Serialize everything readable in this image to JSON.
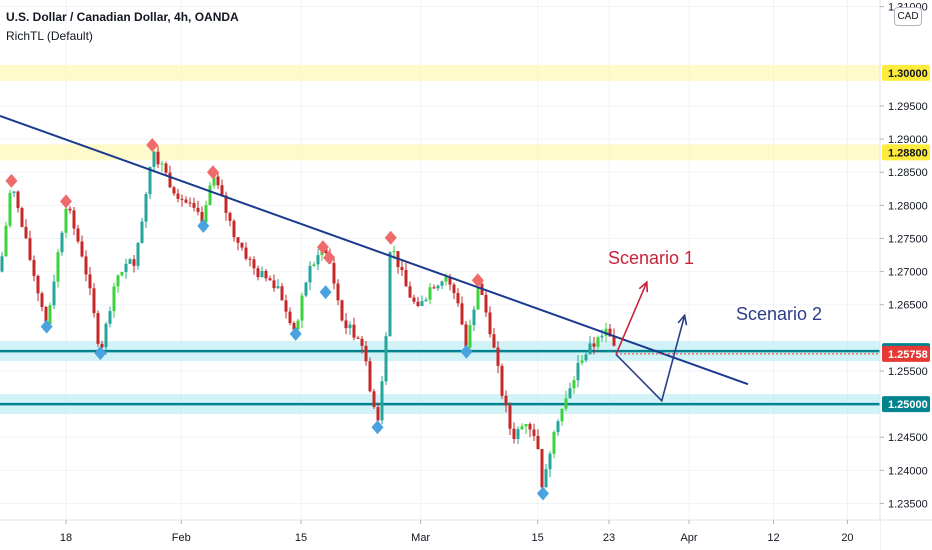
{
  "header": {
    "title": "U.S. Dollar / Canadian Dollar, 4h, OANDA",
    "indicator": "RichTL (Default)",
    "currency": "CAD"
  },
  "chart_data": {
    "type": "candlestick",
    "symbol": "USDCAD",
    "timeframe": "4h",
    "x_tick_labels": [
      "18",
      "Feb",
      "15",
      "Mar",
      "15",
      "23",
      "Apr",
      "12",
      "20"
    ],
    "y_tick_labels": [
      "1.31000",
      "1.29500",
      "1.29000",
      "1.28500",
      "1.28000",
      "1.27500",
      "1.27000",
      "1.26500",
      "1.25500",
      "1.24500",
      "1.24000",
      "1.23500"
    ],
    "ylim": [
      1.2325,
      1.311
    ],
    "grid": true,
    "colors": {
      "up": "#26a69a",
      "up_bright": "#3bd23b",
      "down": "#c62828",
      "trendline": "#1a3a8f",
      "resistance_band": "#fff59d",
      "support_band": "#b2ebf2",
      "support_line": "#00838f",
      "scenario1": "#c8233a",
      "scenario2": "#2c3e8a",
      "swing_high": "#ef6b6b",
      "swing_low": "#4aa3df",
      "last_price_tag": "#e53935"
    },
    "levels": [
      {
        "price": 1.3,
        "label": "1.30000",
        "style": "yellow-band"
      },
      {
        "price": 1.288,
        "label": "1.28800",
        "style": "yellow-band"
      },
      {
        "price": 1.258,
        "label": "1.25800",
        "style": "cyan-band"
      },
      {
        "price": 1.25,
        "label": "1.25000",
        "style": "cyan-band"
      }
    ],
    "last_price": {
      "value": 1.25758,
      "label": "1.25758"
    },
    "trendline": {
      "from": [
        0.0,
        1.2935
      ],
      "to": [
        0.85,
        1.253
      ]
    },
    "scenarios": [
      {
        "name": "Scenario 1",
        "path": [
          [
            0.7,
            1.2575
          ],
          [
            0.735,
            1.2684
          ]
        ]
      },
      {
        "name": "Scenario 2",
        "path": [
          [
            0.7,
            1.2575
          ],
          [
            0.752,
            1.2505
          ],
          [
            0.778,
            1.2634
          ]
        ]
      }
    ],
    "swing_highs": [
      {
        "t": 0.013,
        "p": 1.2834
      },
      {
        "t": 0.075,
        "p": 1.2803
      },
      {
        "t": 0.173,
        "p": 1.2888
      },
      {
        "t": 0.242,
        "p": 1.2847
      },
      {
        "t": 0.367,
        "p": 1.2734
      },
      {
        "t": 0.374,
        "p": 1.2718
      },
      {
        "t": 0.444,
        "p": 1.2748
      },
      {
        "t": 0.543,
        "p": 1.2684
      }
    ],
    "swing_lows": [
      {
        "t": 0.053,
        "p": 1.262
      },
      {
        "t": 0.114,
        "p": 1.258
      },
      {
        "t": 0.231,
        "p": 1.2772
      },
      {
        "t": 0.336,
        "p": 1.2609
      },
      {
        "t": 0.37,
        "p": 1.2672
      },
      {
        "t": 0.429,
        "p": 1.2468
      },
      {
        "t": 0.53,
        "p": 1.2582
      },
      {
        "t": 0.617,
        "p": 1.2368
      }
    ],
    "price_path": [
      [
        0.0,
        1.27
      ],
      [
        0.013,
        1.2834
      ],
      [
        0.03,
        1.274
      ],
      [
        0.053,
        1.262
      ],
      [
        0.075,
        1.2803
      ],
      [
        0.095,
        1.272
      ],
      [
        0.114,
        1.258
      ],
      [
        0.135,
        1.27
      ],
      [
        0.155,
        1.272
      ],
      [
        0.173,
        1.2888
      ],
      [
        0.195,
        1.283
      ],
      [
        0.231,
        1.2772
      ],
      [
        0.242,
        1.2847
      ],
      [
        0.265,
        1.276
      ],
      [
        0.29,
        1.27
      ],
      [
        0.315,
        1.268
      ],
      [
        0.336,
        1.2609
      ],
      [
        0.35,
        1.27
      ],
      [
        0.367,
        1.2734
      ],
      [
        0.374,
        1.2718
      ],
      [
        0.39,
        1.262
      ],
      [
        0.41,
        1.26
      ],
      [
        0.429,
        1.2468
      ],
      [
        0.437,
        1.257
      ],
      [
        0.444,
        1.2748
      ],
      [
        0.46,
        1.268
      ],
      [
        0.475,
        1.264
      ],
      [
        0.49,
        1.268
      ],
      [
        0.505,
        1.269
      ],
      [
        0.52,
        1.266
      ],
      [
        0.53,
        1.2582
      ],
      [
        0.543,
        1.2684
      ],
      [
        0.556,
        1.262
      ],
      [
        0.57,
        1.252
      ],
      [
        0.582,
        1.245
      ],
      [
        0.598,
        1.2475
      ],
      [
        0.61,
        1.245
      ],
      [
        0.617,
        1.2368
      ],
      [
        0.63,
        1.247
      ],
      [
        0.645,
        1.251
      ],
      [
        0.66,
        1.257
      ],
      [
        0.675,
        1.259
      ],
      [
        0.69,
        1.261
      ],
      [
        0.7,
        1.2575
      ]
    ]
  }
}
